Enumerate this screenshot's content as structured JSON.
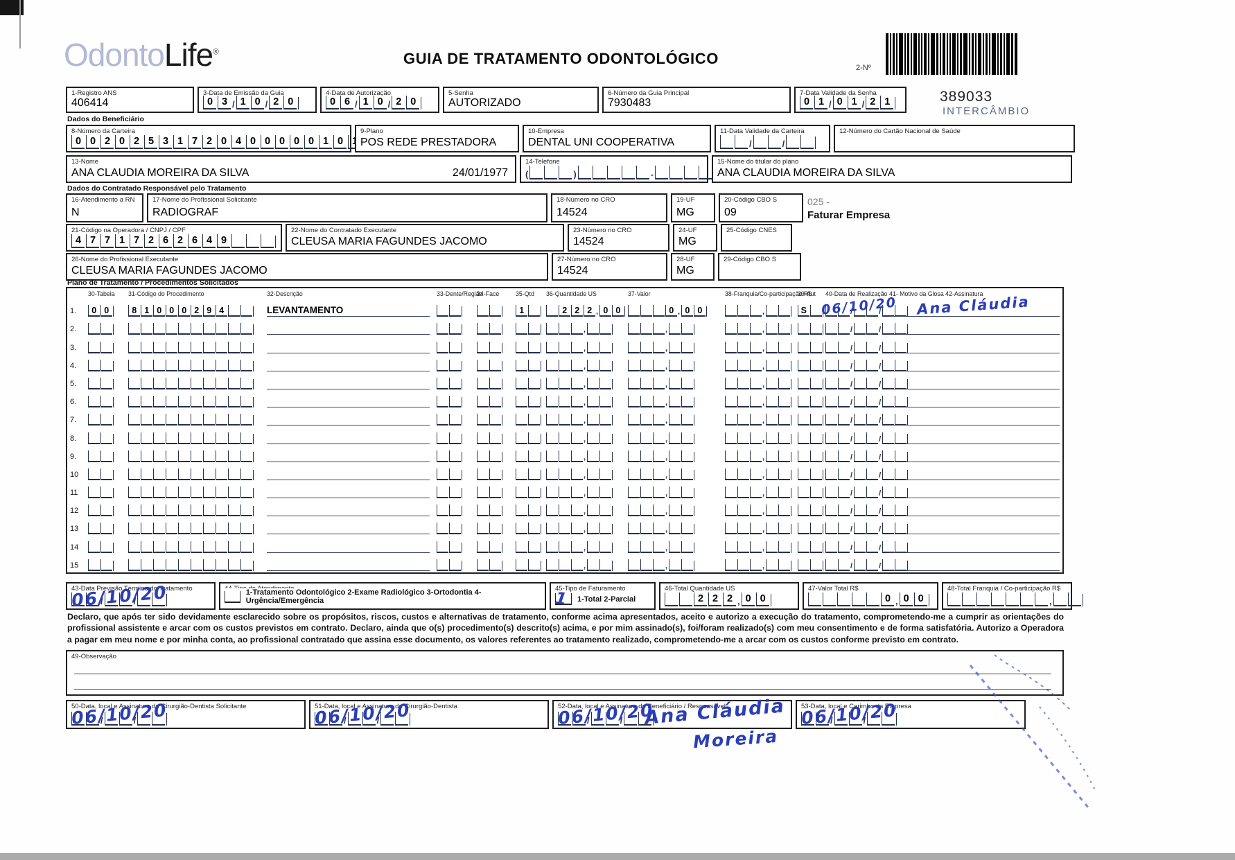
{
  "page": {
    "logo_light": "Odonto",
    "logo_dark": "Life",
    "logo_reg": "®",
    "title": "GUIA DE TRATAMENTO ODONTOLÓGICO",
    "barcode_label": "2-Nº",
    "barcode_number": "389033",
    "barcode_sub": "INTERCÂMBIO"
  },
  "sections": {
    "beneficiario": "Dados do Beneficiário",
    "contratado": "Dados do Contratado Responsável pelo Tratamento",
    "plano": "Plano de Tratamento / Procedimentos Solicitados"
  },
  "note": {
    "line1": "025 -",
    "line2": "Faturar Empresa"
  },
  "fields": {
    "f1": {
      "label": "1-Registro ANS",
      "value": "406414"
    },
    "f3": {
      "label": "3-Data de Emissão da Guia",
      "comb": "03/10/20"
    },
    "f4": {
      "label": "4-Data de Autorização",
      "comb": "06/10/20"
    },
    "f5": {
      "label": "5-Senha",
      "value": "AUTORIZADO"
    },
    "f6": {
      "label": "6-Número da Guia Principal",
      "value": "7930483"
    },
    "f7": {
      "label": "7-Data Validade da Senha",
      "comb": "01/01/21"
    },
    "f8": {
      "label": "8-Número da Carteira",
      "comb": "00202531720400000101"
    },
    "f9": {
      "label": "9-Plano",
      "value": "POS REDE PRESTADORA"
    },
    "f10": {
      "label": "10-Empresa",
      "value": "DENTAL UNI  COOPERATIVA"
    },
    "f11": {
      "label": "11-Data Validade da Carteira",
      "comb": "  /  /  "
    },
    "f12": {
      "label": "12-Número do Cartão Nacional de Saúde",
      "value": ""
    },
    "f13": {
      "label": "13-Nome",
      "value": "ANA CLAUDIA MOREIRA DA SILVA",
      "extra": "24/01/1977"
    },
    "f14": {
      "label": "14-Telefone",
      "comb": "(   )     -     "
    },
    "f15": {
      "label": "15-Nome do titular do plano",
      "value": "ANA CLAUDIA MOREIRA DA SILVA"
    },
    "f16": {
      "label": "16-Atendimento a RN",
      "value": "N"
    },
    "f17": {
      "label": "17-Nome do Profissional Solicitante",
      "value": "RADIOGRAF"
    },
    "f18": {
      "label": "18-Número no CRO",
      "value": "14524"
    },
    "f19": {
      "label": "19-UF",
      "value": "MG"
    },
    "f20": {
      "label": "20-Código CBO S",
      "value": "09"
    },
    "f21": {
      "label": "21-Código na Operadora / CNPJ / CPF",
      "comb": "47717262649   "
    },
    "f22": {
      "label": "22-Nome do Contratado Executante",
      "value": "CLEUSA MARIA FAGUNDES JACOMO"
    },
    "f23": {
      "label": "23-Número no CRO",
      "value": "14524"
    },
    "f24": {
      "label": "24-UF",
      "value": "MG"
    },
    "f25": {
      "label": "25-Código CNES",
      "value": ""
    },
    "f26": {
      "label": "26-Nome do Profissional Executante",
      "value": "CLEUSA MARIA FAGUNDES JACOMO"
    },
    "f27": {
      "label": "27-Número no CRO",
      "value": "14524"
    },
    "f28": {
      "label": "28-UF",
      "value": "MG"
    },
    "f29": {
      "label": "29-Código CBO S",
      "value": ""
    },
    "f43": {
      "label": "43-Data Previsão Término do Tratamento",
      "comb": "  /  /  ",
      "hand": "06/10/20"
    },
    "f44": {
      "label": "44-Tipo de Atendimento",
      "options": "1-Tratamento Odontológico  2-Exame Radiológico  3-Ortodontia  4-Urgência/Emergência"
    },
    "f45": {
      "label": "45-Tipo de Faturamento",
      "options": "1-Total  2-Parcial",
      "hand": "1"
    },
    "f46": {
      "label": "46-Total Quantidade US",
      "comb": "  222,00"
    },
    "f47": {
      "label": "47-Valor Total R$",
      "comb": "     0,00"
    },
    "f48": {
      "label": "48-Total Franquia / Co-participação R$",
      "comb": "       ,  "
    },
    "f49": {
      "label": "49-Observação"
    },
    "f50": {
      "label": "50-Data, local e Assinatura do Cirurgião-Dentista Solicitante",
      "comb": "  /  /  ",
      "hand": "06/10/20"
    },
    "f51": {
      "label": "51-Data, local e Assinatura do Cirurgião-Dentista",
      "comb": "  /  /  ",
      "hand": "06/10/20"
    },
    "f52": {
      "label": "52-Data, local e Assinatura do Beneficiário / Responsável",
      "comb": "  /  /  ",
      "hand": "06/10/20",
      "signature1": "Ana Cláudia",
      "signature2": "Moreira"
    },
    "f53": {
      "label": "53-Data, local e Carimbo da Empresa",
      "comb": "  /  /  ",
      "hand": "06/10/20"
    }
  },
  "table": {
    "headers": {
      "h30": "30-Tabela",
      "h31": "31-Código do Procedimento",
      "h32": "32-Descrição",
      "h33": "33-Dente/Região",
      "h34": "34-Face",
      "h35": "35-Qtd",
      "h36": "36-Quantidade US",
      "h37": "37-Valor",
      "h38": "38-Franquia/Co-participação R$",
      "h39": "39-Aut",
      "h40": "40-Data de Realização",
      "h41": "41- Motivo da Glosa 42-Assinatura"
    },
    "defaults": {
      "tabela": "  ",
      "codigo": "          ",
      "descricao": "",
      "dente": "  ",
      "face": "  ",
      "qtd": "  ",
      "us": "   ,  ",
      "valor": "   ,  ",
      "franquia": "   ,  ",
      "aut": "  ",
      "data": "  /  /  ",
      "assinatura": ""
    },
    "rows": [
      {
        "n": "1.",
        "tabela": "00",
        "codigo": "81000294  ",
        "descricao": "LEVANTAMENTO",
        "qtd": "1 ",
        "us": " 222,00",
        "valor": "   0,00",
        "aut": "S ",
        "hand_date": "06/10/20",
        "hand_sign": "Ana Cláudia"
      },
      {
        "n": "2."
      },
      {
        "n": "3."
      },
      {
        "n": "4."
      },
      {
        "n": "5."
      },
      {
        "n": "6."
      },
      {
        "n": "7."
      },
      {
        "n": "8."
      },
      {
        "n": "9."
      },
      {
        "n": "10"
      },
      {
        "n": "11"
      },
      {
        "n": "12"
      },
      {
        "n": "13"
      },
      {
        "n": "14"
      },
      {
        "n": "15"
      }
    ]
  },
  "declaration": "Declaro, que após ter sido devidamente esclarecido sobre os propósitos, riscos, custos e alternativas de tratamento, conforme acima apresentados, aceito e autorizo a execução do tratamento, comprometendo-me a cumprir as orientações do profissional assistente e arcar com os custos previstos em contrato. Declaro, ainda que o(s) procedimento(s) descrito(s) acima, e por mim assinado(s), foi/foram realizado(s) com meu consentimento e de forma satisfatória. Autorizo a Operadora a pagar em meu nome e por minha conta, ao profissional contratado que assina esse documento, os valores referentes ao tratamento realizado, comprometendo-me a arcar com os custos conforme previsto em contrato."
}
